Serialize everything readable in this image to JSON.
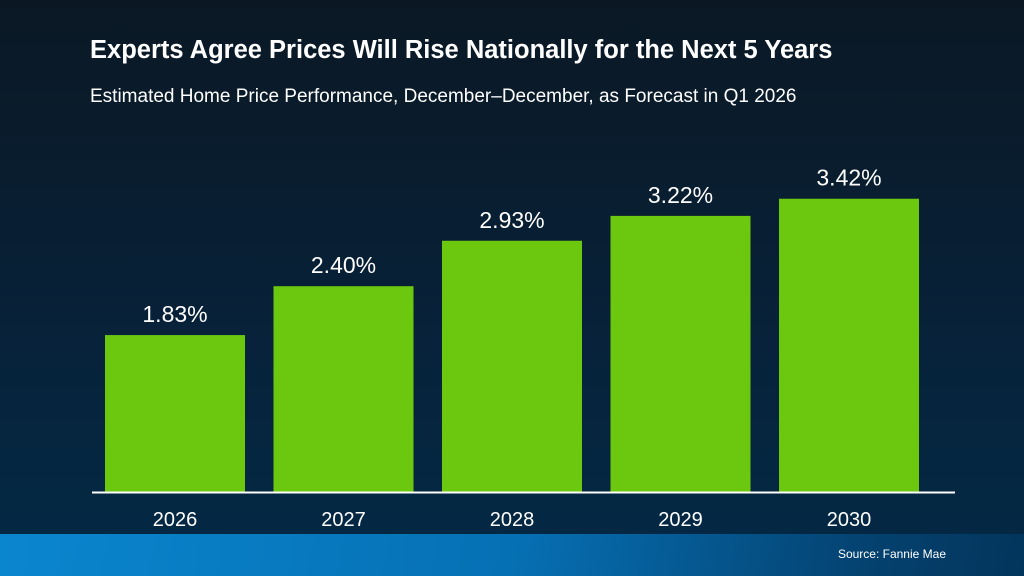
{
  "chart_data": {
    "type": "bar",
    "title": "Experts Agree Prices Will Rise Nationally for the Next 5 Years",
    "subtitle": "Estimated Home Price Performance, December–December, as Forecast in Q1 2026",
    "categories": [
      "2026",
      "2027",
      "2028",
      "2029",
      "2030"
    ],
    "values": [
      1.83,
      2.4,
      2.93,
      3.22,
      3.42
    ],
    "data_labels": [
      "1.83%",
      "2.40%",
      "2.93%",
      "3.22%",
      "3.42%"
    ],
    "xlabel": "",
    "ylabel": "",
    "ylim": [
      0,
      4
    ],
    "grid": false,
    "bar_color": "#6cc80e",
    "source": "Source: Fannie Mae"
  }
}
